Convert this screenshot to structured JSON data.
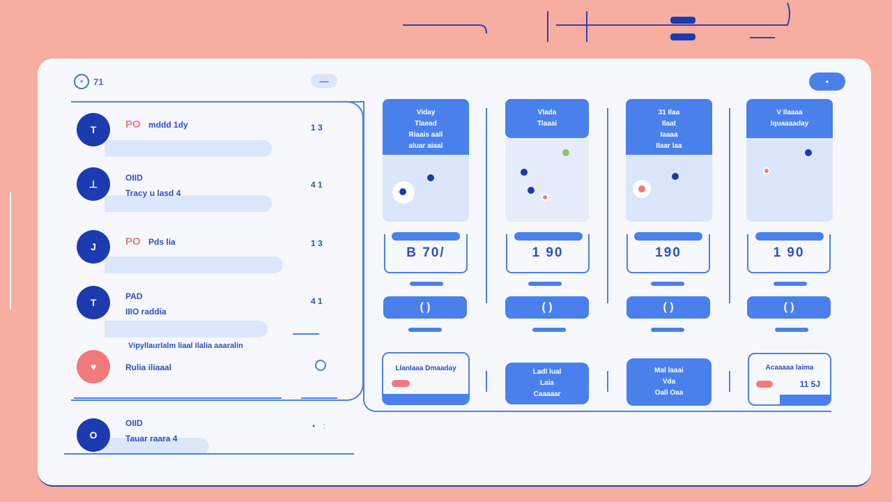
{
  "colors": {
    "accent": "#4a80ec",
    "dark": "#1c3bb0",
    "alert": "#f07b7b",
    "bg": "#f7ada0"
  },
  "header": {
    "logo_text": "71",
    "logo_icon": "circle-logo-icon",
    "center_button": "—",
    "right_button": "•"
  },
  "list": [
    {
      "avatar": "T",
      "badge": "PO",
      "line1": "mddd 1dy",
      "line2": "",
      "count": "1 3"
    },
    {
      "avatar": "⊥",
      "badge": "",
      "line1": "OIID",
      "line2": "Tracy u lasd 4",
      "count": "4 1"
    },
    {
      "avatar": "J",
      "badge": "PO",
      "line1": "Pds lia",
      "line2": "",
      "count": "1 3"
    },
    {
      "avatar": "T",
      "badge": "",
      "line1": "PAD",
      "line2": "IIIO raddia",
      "count": "4 1"
    },
    {
      "avatar": "♥",
      "badge": "",
      "line1": "Vipyllaurlalm liaal Ilalia aaaralin",
      "line2": "Rulia iliaaal",
      "count": ""
    },
    {
      "avatar": "O",
      "badge": "",
      "line1": "OIID",
      "line2": "Tauar raara 4",
      "count": ""
    }
  ],
  "columns": [
    {
      "head": [
        "Viday",
        "Tlaead",
        "Riaais aall",
        "aluar aiaal"
      ],
      "value": "B 70/",
      "button": "( )",
      "card": [
        "Llanlaaa Dmaaday"
      ],
      "card_style": "outline"
    },
    {
      "head": [
        "Vlada",
        "Tlaaai"
      ],
      "value": "1 90",
      "button": "( )",
      "card": [
        "Ladl lual",
        "Laia",
        "Caaaaar"
      ],
      "card_style": "filled"
    },
    {
      "head": [
        "31 Ilaa",
        "Ilaat",
        "Iaaaa",
        "Ilaar laa"
      ],
      "value": "190",
      "button": "( )",
      "card": [
        "Mal laaai",
        "Vda",
        "Oall Oaa"
      ],
      "card_style": "filled"
    },
    {
      "head": [
        "V Ilaaaa",
        "Iquaaaaday"
      ],
      "value": "1 90",
      "button": "( )",
      "card": [
        "Acaaaaa laima",
        "11 5J"
      ],
      "card_style": "outline"
    }
  ]
}
